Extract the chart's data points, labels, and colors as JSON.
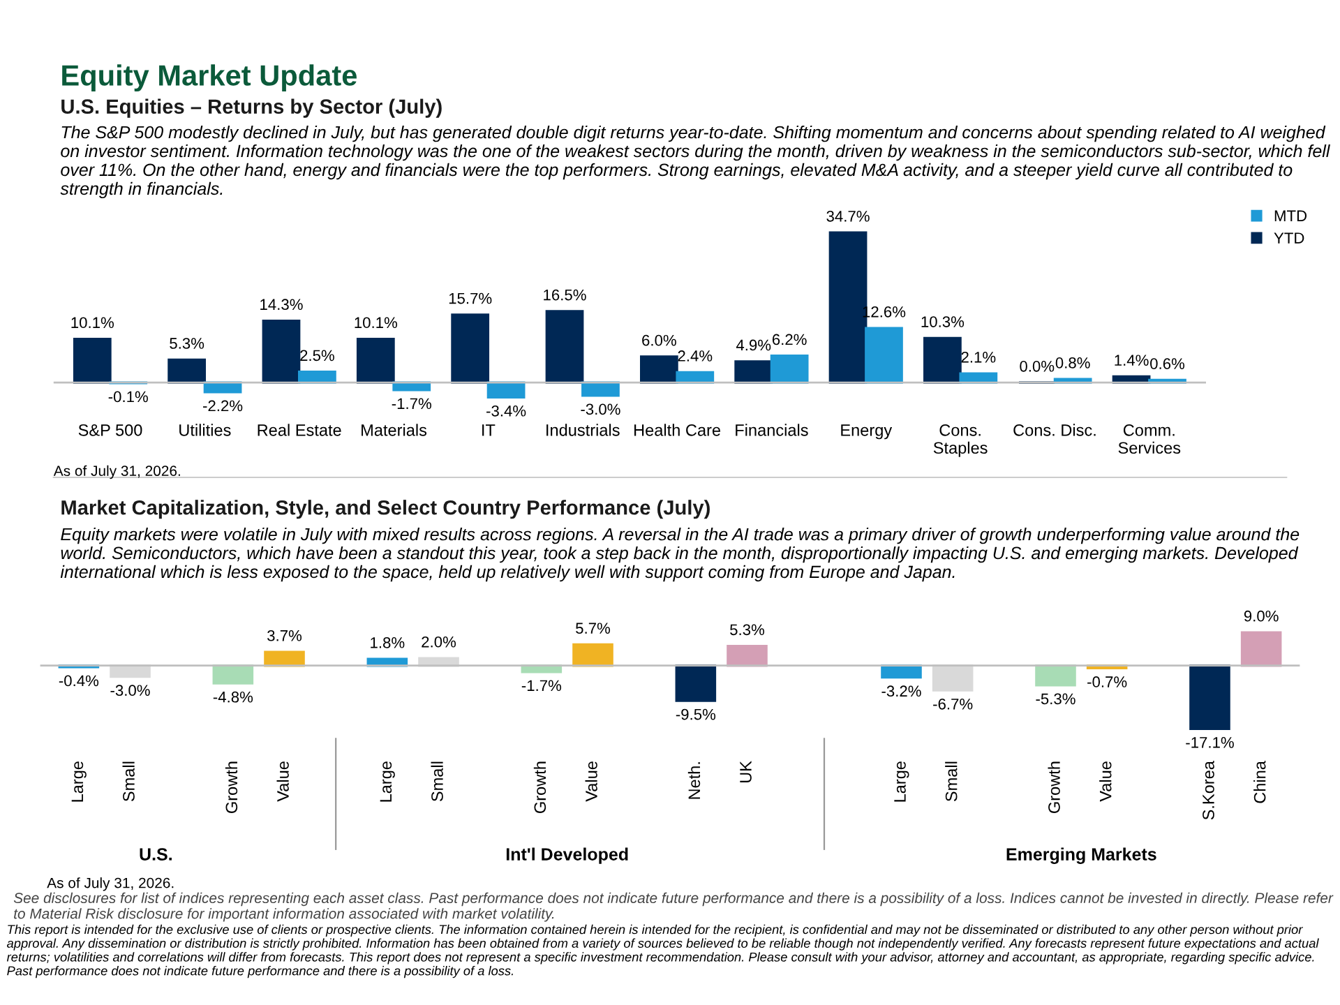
{
  "chart_data": [
    {
      "type": "bar",
      "title": "Equity Market Update",
      "subtitle": "U.S. Equities – Returns by Sector (July)",
      "categories": [
        "S&P 500",
        "Utilities",
        "Real Estate",
        "Materials",
        "IT",
        "Industrials",
        "Health Care",
        "Financials",
        "Energy",
        "Cons.\nStaples",
        "Cons. Disc.",
        "Comm.\nServices"
      ],
      "series": [
        {
          "name": "YTD",
          "color": "#002855",
          "values": [
            10.1,
            5.3,
            14.3,
            10.1,
            15.7,
            16.5,
            6.0,
            4.9,
            34.7,
            10.3,
            0.0,
            1.4
          ],
          "value_labels": [
            "10.1%",
            "5.3%",
            "14.3%",
            "10.1%",
            "15.7%",
            "16.5%",
            "6.0%",
            "4.9%",
            "34.7%",
            "10.3%",
            "0.0%",
            "1.4%"
          ]
        },
        {
          "name": "MTD",
          "color": "#1f9ad6",
          "values": [
            -0.1,
            -2.2,
            2.5,
            -1.7,
            -3.4,
            -3.0,
            2.4,
            6.2,
            12.6,
            2.1,
            0.8,
            0.6
          ],
          "value_labels": [
            "-0.1%",
            "-2.2%",
            "2.5%",
            "-1.7%",
            "-3.4%",
            "-3.0%",
            "2.4%",
            "6.2%",
            "12.6%",
            "2.1%",
            "0.8%",
            "0.6%"
          ]
        }
      ],
      "legend": "top right",
      "tick_labels": "x",
      "grid": false,
      "annotations": [
        "The S&P 500 modestly declined in July, but has generated double digit returns year-to-date. Shifting momentum and concerns about spending related to AI weighed on investor sentiment. Information technology was the one of the weakest sectors during the month, driven by weakness in the semiconductors sub-sector, which fell over 11%. On the other hand, energy and financials were the top performers. Strong earnings, elevated M&A activity, and a steeper yield curve all contributed to strength in financials.",
        "As of July 31, 2026."
      ]
    },
    {
      "type": "bar",
      "title": "Market Capitalization, Style, and Select Country Performance (July)",
      "categories": [
        "Large",
        "Small",
        null,
        "Growth",
        "Value",
        null,
        "Large",
        "Small",
        null,
        "Growth",
        "Value",
        null,
        "Neth.",
        "UK",
        null,
        null,
        "Large",
        "Small",
        null,
        "Growth",
        "Value",
        null,
        "S.Korea",
        "China"
      ],
      "values": [
        -0.4,
        -3.0,
        null,
        -4.8,
        3.7,
        null,
        1.8,
        2.0,
        null,
        -1.7,
        5.7,
        null,
        -9.5,
        5.3,
        null,
        null,
        -3.2,
        -6.7,
        null,
        -5.3,
        -0.7,
        null,
        -17.1,
        9.0
      ],
      "value_labels": [
        "-0.4%",
        "-3.0%",
        null,
        "-4.8%",
        "3.7%",
        null,
        "1.8%",
        "2.0%",
        null,
        "-1.7%",
        "5.7%",
        null,
        "-9.5%",
        "5.3%",
        null,
        null,
        "-3.2%",
        "-6.7%",
        null,
        "-5.3%",
        "-0.7%",
        null,
        "-17.1%",
        "9.0%"
      ],
      "colors": [
        "#1f9ad6",
        "#d9d9d9",
        null,
        "#a8dcb5",
        "#f0b323",
        null,
        "#1f9ad6",
        "#d9d9d9",
        null,
        "#a8dcb5",
        "#f0b323",
        null,
        "#002855",
        "#d49fb5",
        null,
        null,
        "#1f9ad6",
        "#d9d9d9",
        null,
        "#a8dcb5",
        "#f0b323",
        null,
        "#002855",
        "#d49fb5"
      ],
      "tick_labels": "x",
      "grid": false,
      "annotations": [
        "Equity markets were volatile in July with mixed results across regions. A reversal in the AI trade was a primary driver of growth underperforming value around the world. Semiconductors, which have been a standout this year, took a step back in the month, disproportionally impacting U.S. and emerging markets. Developed international which is less exposed to the space, held up relatively well with support coming from Europe and Japan.",
        "U.S.",
        "Int'l Developed",
        "Emerging Markets",
        "As of July 31, 2026.",
        "See disclosures for list of indices representing each asset class. Past performance does not indicate future performance and there is a possibility of a loss. Indices cannot be invested in directly. Please refer to Material Risk disclosure for important information associated with market volatility.",
        "This report is intended for the exclusive use of clients or prospective clients. The information contained herein is intended for the recipient, is confidential and may not be disseminated or distributed to any other person without prior approval. Any dissemination or distribution is strictly prohibited. Information has been obtained from a variety of sources believed to be reliable though not independently verified. Any forecasts represent future expectations and actual returns; volatilities and correlations will differ from forecasts. This report does not represent a specific investment recommendation. Please consult with your advisor, attorney and accountant, as appropriate, regarding specific advice. Past performance does not indicate future performance and there is a possibility of a loss."
      ]
    }
  ]
}
